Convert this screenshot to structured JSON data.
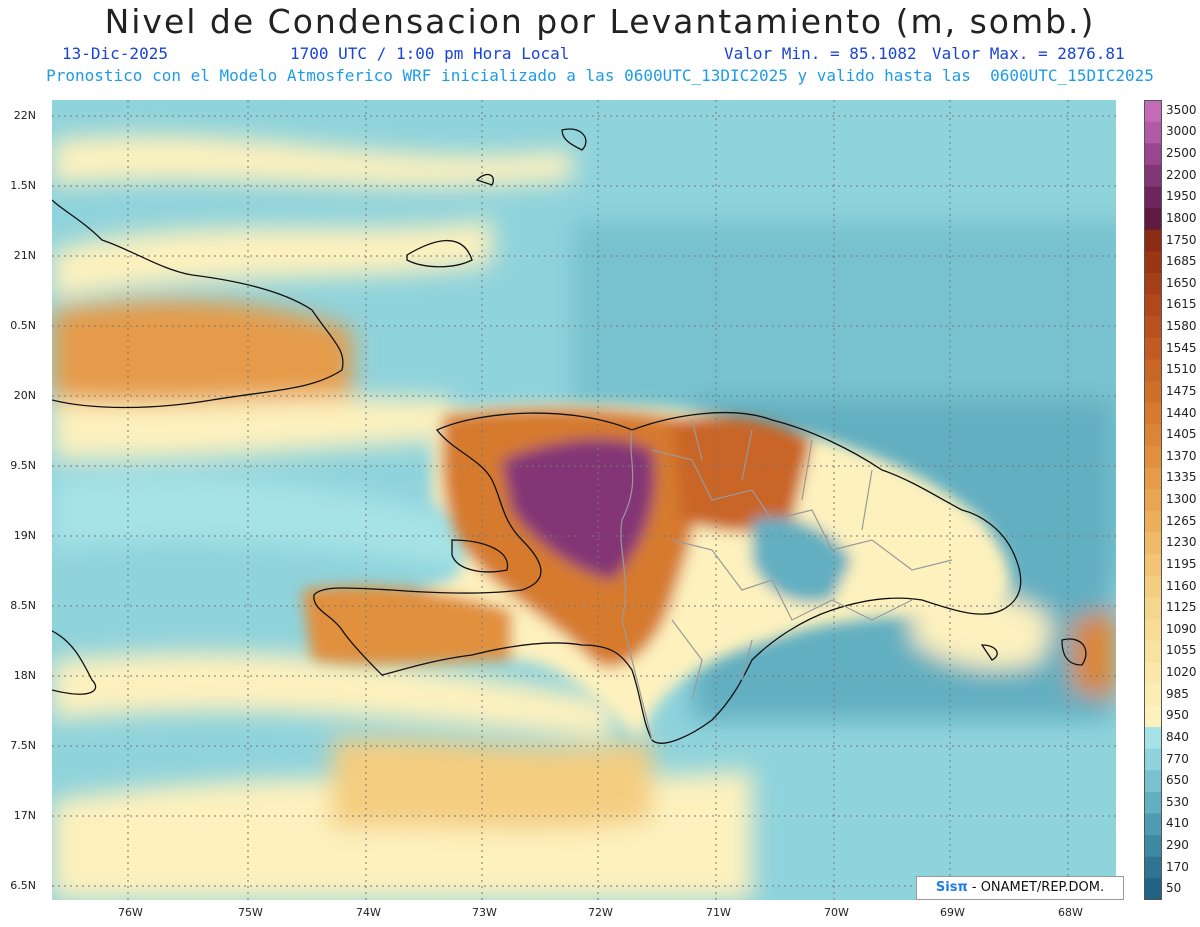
{
  "header": {
    "title": "Nivel de Condensacion por Levantamiento (m, somb.)",
    "date": "13-Dic-2025",
    "time": "1700 UTC / 1:00 pm Hora Local",
    "min_label": "Valor Min. = 85.1082",
    "max_label": "Valor Max. = 2876.81",
    "forecast_line": "Pronostico con el Modelo Atmosferico WRF inicializado a las 0600UTC_13DIC2025 y valido hasta las  0600UTC_15DIC2025"
  },
  "map": {
    "lat_labels": [
      "22N",
      "1.5N",
      "21N",
      "0.5N",
      "20N",
      "9.5N",
      "19N",
      "8.5N",
      "18N",
      "7.5N",
      "17N",
      "6.5N"
    ],
    "lon_labels": [
      "76W",
      "75W",
      "74W",
      "73W",
      "72W",
      "71W",
      "70W",
      "69W",
      "68W"
    ],
    "credit_logo": "Sisπ",
    "credit_text": "- ONAMET/REP.DOM."
  },
  "colorbar": {
    "levels": [
      "3500",
      "3000",
      "2500",
      "2200",
      "1950",
      "1800",
      "1750",
      "1685",
      "1650",
      "1615",
      "1580",
      "1545",
      "1510",
      "1475",
      "1440",
      "1405",
      "1370",
      "1335",
      "1300",
      "1265",
      "1230",
      "1195",
      "1160",
      "1125",
      "1090",
      "1055",
      "1020",
      "985",
      "950",
      "840",
      "770",
      "650",
      "530",
      "410",
      "290",
      "170",
      "50"
    ],
    "colors": [
      "#c46bb6",
      "#b25aa6",
      "#9a4590",
      "#833676",
      "#6e255e",
      "#5e1a40",
      "#8c2b14",
      "#9c3514",
      "#a63e18",
      "#b0481a",
      "#b9521e",
      "#c25b22",
      "#c96525",
      "#d06f2a",
      "#d67a2f",
      "#dc8536",
      "#e1903e",
      "#e59b48",
      "#e9a652",
      "#ecb05d",
      "#efbb68",
      "#f2c474",
      "#f4cd80",
      "#f6d58c",
      "#f8dc96",
      "#f9e2a0",
      "#fbe8aa",
      "#fcedb4",
      "#fdf1be",
      "#a6e3e6",
      "#8fd3dc",
      "#78c2cf",
      "#62afc1",
      "#4f9cb2",
      "#3d88a2",
      "#2d7592",
      "#206283"
    ]
  }
}
